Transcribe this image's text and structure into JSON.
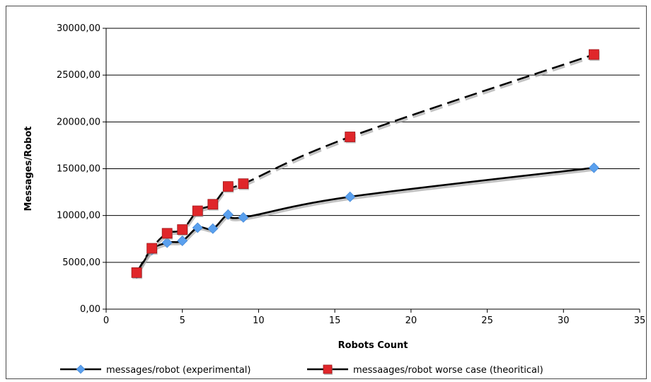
{
  "chart_data": {
    "type": "line",
    "xlabel": "Robots Count",
    "ylabel": "Messages/Robot",
    "xlim": [
      0,
      35
    ],
    "ylim": [
      0,
      30000
    ],
    "x_ticks": [
      0,
      5,
      10,
      15,
      20,
      25,
      30,
      35
    ],
    "x_tick_labels": [
      "0",
      "5",
      "10",
      "15",
      "20",
      "25",
      "30",
      "35"
    ],
    "y_ticks": [
      0,
      5000,
      10000,
      15000,
      20000,
      25000,
      30000
    ],
    "y_tick_labels": [
      "0,00",
      "5000,00",
      "10000,00",
      "15000,00",
      "20000,00",
      "25000,00",
      "30000,00"
    ],
    "grid": "horizontal",
    "legend_position": "bottom",
    "series": [
      {
        "name": "messages/robot (experimental)",
        "x": [
          2,
          3,
          4,
          5,
          6,
          7,
          8,
          9,
          16,
          32
        ],
        "y": [
          3800,
          6300,
          7100,
          7300,
          8700,
          8600,
          10100,
          9800,
          12000,
          15100
        ],
        "color": "#5aa0ee",
        "marker": "diamond",
        "line_style": "solid",
        "line_color": "#000000"
      },
      {
        "name": "messaages/robot worse case (theoritical)",
        "x": [
          2,
          3,
          4,
          5,
          6,
          7,
          8,
          9,
          16,
          32
        ],
        "y": [
          3900,
          6500,
          8100,
          8500,
          10500,
          11200,
          13100,
          13400,
          18400,
          27200
        ],
        "color": "#e0262a",
        "marker": "square",
        "line_style": "dashed",
        "line_color": "#000000"
      }
    ]
  }
}
